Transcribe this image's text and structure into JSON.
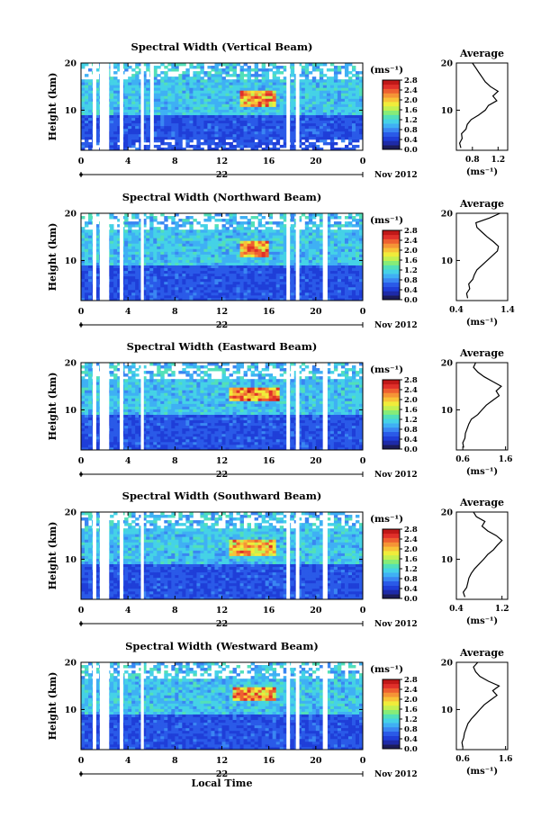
{
  "figure": {
    "date_label": "Nov 2012",
    "day_label": "22",
    "xlabel": "Local Time",
    "ylabel": "Height (km)",
    "cbar_unit": "(ms⁻¹)",
    "avg_title": "Average",
    "avg_xlabel": "(ms⁻¹)"
  },
  "colors": {
    "colormap": [
      "#1c1c5a",
      "#1e2aa8",
      "#1f3ed8",
      "#2a5ae8",
      "#3a86f2",
      "#3fb0f4",
      "#45d2e6",
      "#52e0b8",
      "#86ec78",
      "#c4f050",
      "#f0ec3a",
      "#f8c238",
      "#f59436",
      "#ee6030",
      "#e0302a",
      "#c01818"
    ]
  },
  "chart_data": [
    {
      "type": "heatmap",
      "title": "Spectral Width (Vertical Beam)",
      "x_ticks": [
        "0",
        "4",
        "8",
        "12",
        "16",
        "20",
        "0"
      ],
      "xlim": [
        0,
        24
      ],
      "y_ticks": [
        "20",
        "10"
      ],
      "ylim": [
        1.5,
        20
      ],
      "colorbar": {
        "ticks": [
          "2.8",
          "2.4",
          "2.0",
          "1.6",
          "1.2",
          "0.8",
          "0.4",
          "0.0"
        ],
        "range": [
          0.0,
          2.8
        ]
      },
      "data_gaps_hours": [
        [
          1.0,
          1.3
        ],
        [
          1.6,
          2.4
        ],
        [
          3.3,
          3.6
        ],
        [
          5.1,
          5.35
        ],
        [
          5.9,
          6.2
        ],
        [
          17.5,
          17.8
        ],
        [
          18.3,
          18.6
        ]
      ],
      "high_width_region": {
        "time_hours": [
          13.5,
          16.5
        ],
        "height_km": [
          11,
          14
        ],
        "value": 2.6
      },
      "average_profile": {
        "x_ticks": [
          "0.8",
          "1.2"
        ],
        "xlim": [
          0.55,
          1.35
        ],
        "y_ticks": [
          "20",
          "10"
        ],
        "ylim": [
          1.5,
          20
        ],
        "height_km": [
          2,
          3,
          4,
          5,
          6,
          7,
          8,
          9,
          10,
          11,
          12,
          13,
          14,
          15,
          16,
          17,
          18,
          19,
          20
        ],
        "width_ms": [
          0.62,
          0.6,
          0.64,
          0.63,
          0.7,
          0.72,
          0.78,
          0.9,
          1.0,
          1.05,
          1.18,
          1.12,
          1.2,
          1.08,
          1.0,
          0.95,
          0.9,
          0.85,
          0.8
        ]
      }
    },
    {
      "type": "heatmap",
      "title": "Spectral Width (Northward Beam)",
      "x_ticks": [
        "0",
        "4",
        "8",
        "12",
        "16",
        "20",
        "0"
      ],
      "xlim": [
        0,
        24
      ],
      "y_ticks": [
        "20",
        "10"
      ],
      "ylim": [
        1.5,
        20
      ],
      "colorbar": {
        "ticks": [
          "2.8",
          "2.4",
          "2.0",
          "1.6",
          "1.2",
          "0.8",
          "0.4",
          "0.0"
        ],
        "range": [
          0.0,
          2.8
        ]
      },
      "data_gaps_hours": [
        [
          1.0,
          1.3
        ],
        [
          1.6,
          2.4
        ],
        [
          3.3,
          3.6
        ],
        [
          5.1,
          5.35
        ],
        [
          17.5,
          17.8
        ],
        [
          18.3,
          18.6
        ],
        [
          20.6,
          21.0
        ]
      ],
      "high_width_region": {
        "time_hours": [
          13.5,
          16.0
        ],
        "height_km": [
          11,
          14
        ],
        "value": 2.6
      },
      "average_profile": {
        "x_ticks": [
          "0.4",
          "1.4"
        ],
        "xlim": [
          0.4,
          1.4
        ],
        "y_ticks": [
          "20",
          "10"
        ],
        "ylim": [
          1.5,
          20
        ],
        "height_km": [
          2,
          3,
          4,
          5,
          6,
          7,
          8,
          9,
          10,
          11,
          12,
          13,
          14,
          15,
          16,
          17,
          18,
          19,
          20
        ],
        "width_ms": [
          0.62,
          0.6,
          0.66,
          0.64,
          0.72,
          0.75,
          0.8,
          0.9,
          1.0,
          1.1,
          1.2,
          1.22,
          1.12,
          1.0,
          0.9,
          0.8,
          0.78,
          1.05,
          1.25
        ]
      }
    },
    {
      "type": "heatmap",
      "title": "Spectral Width (Eastward Beam)",
      "x_ticks": [
        "0",
        "4",
        "8",
        "12",
        "16",
        "20",
        "0"
      ],
      "xlim": [
        0,
        24
      ],
      "y_ticks": [
        "20",
        "10"
      ],
      "ylim": [
        1.5,
        20
      ],
      "colorbar": {
        "ticks": [
          "2.8",
          "2.4",
          "2.0",
          "1.6",
          "1.2",
          "0.8",
          "0.4",
          "0.0"
        ],
        "range": [
          0.0,
          2.8
        ]
      },
      "data_gaps_hours": [
        [
          1.0,
          1.3
        ],
        [
          1.6,
          2.4
        ],
        [
          3.3,
          3.6
        ],
        [
          5.1,
          5.35
        ],
        [
          17.5,
          17.8
        ],
        [
          18.3,
          18.6
        ],
        [
          20.6,
          21.0
        ]
      ],
      "high_width_region": {
        "time_hours": [
          12.5,
          17.0
        ],
        "height_km": [
          12,
          15
        ],
        "value": 2.7
      },
      "average_profile": {
        "x_ticks": [
          "0.6",
          "1.6"
        ],
        "xlim": [
          0.45,
          1.65
        ],
        "y_ticks": [
          "20",
          "10"
        ],
        "ylim": [
          1.5,
          20
        ],
        "height_km": [
          2,
          3,
          4,
          5,
          6,
          7,
          8,
          9,
          10,
          11,
          12,
          13,
          14,
          15,
          16,
          17,
          18,
          19,
          20
        ],
        "width_ms": [
          0.62,
          0.6,
          0.65,
          0.66,
          0.7,
          0.74,
          0.8,
          0.95,
          1.05,
          1.15,
          1.3,
          1.45,
          1.38,
          1.5,
          1.3,
          1.1,
          0.95,
          0.85,
          0.9
        ]
      }
    },
    {
      "type": "heatmap",
      "title": "Spectral Width (Southward Beam)",
      "x_ticks": [
        "0",
        "4",
        "8",
        "12",
        "16",
        "20",
        "0"
      ],
      "xlim": [
        0,
        24
      ],
      "y_ticks": [
        "20",
        "10"
      ],
      "ylim": [
        1.5,
        20
      ],
      "colorbar": {
        "ticks": [
          "2.8",
          "2.4",
          "2.0",
          "1.6",
          "1.2",
          "0.8",
          "0.4",
          "0.0"
        ],
        "range": [
          0.0,
          2.8
        ]
      },
      "data_gaps_hours": [
        [
          1.0,
          1.3
        ],
        [
          1.6,
          2.4
        ],
        [
          3.3,
          3.6
        ],
        [
          5.1,
          5.35
        ],
        [
          17.5,
          17.8
        ],
        [
          18.3,
          18.6
        ],
        [
          20.6,
          21.0
        ]
      ],
      "high_width_region": {
        "time_hours": [
          12.5,
          16.5
        ],
        "height_km": [
          11,
          14
        ],
        "value": 2.5
      },
      "average_profile": {
        "x_ticks": [
          "0.4",
          "1.2"
        ],
        "xlim": [
          0.4,
          1.3
        ],
        "y_ticks": [
          "20",
          "10"
        ],
        "ylim": [
          1.5,
          20
        ],
        "height_km": [
          2,
          3,
          4,
          5,
          6,
          7,
          8,
          9,
          10,
          11,
          12,
          13,
          14,
          15,
          16,
          17,
          18,
          19,
          20
        ],
        "width_ms": [
          0.55,
          0.52,
          0.58,
          0.6,
          0.62,
          0.66,
          0.72,
          0.8,
          0.88,
          0.95,
          1.05,
          1.12,
          1.2,
          1.1,
          0.95,
          0.85,
          0.9,
          0.75,
          0.7
        ]
      }
    },
    {
      "type": "heatmap",
      "title": "Spectral Width (Westward Beam)",
      "x_ticks": [
        "0",
        "4",
        "8",
        "12",
        "16",
        "20",
        "0"
      ],
      "xlim": [
        0,
        24
      ],
      "y_ticks": [
        "20",
        "10"
      ],
      "ylim": [
        1.5,
        20
      ],
      "colorbar": {
        "ticks": [
          "2.8",
          "2.4",
          "2.0",
          "1.6",
          "1.2",
          "0.8",
          "0.4",
          "0.0"
        ],
        "range": [
          0.0,
          2.8
        ]
      },
      "data_gaps_hours": [
        [
          1.0,
          1.3
        ],
        [
          1.6,
          2.4
        ],
        [
          3.3,
          3.6
        ],
        [
          5.1,
          5.35
        ],
        [
          17.5,
          17.8
        ],
        [
          18.3,
          18.6
        ],
        [
          20.6,
          21.0
        ]
      ],
      "high_width_region": {
        "time_hours": [
          13.0,
          16.5
        ],
        "height_km": [
          12,
          15
        ],
        "value": 2.6
      },
      "average_profile": {
        "x_ticks": [
          "0.6",
          "1.6"
        ],
        "xlim": [
          0.45,
          1.65
        ],
        "y_ticks": [
          "20",
          "10"
        ],
        "ylim": [
          1.5,
          20
        ],
        "height_km": [
          2,
          3,
          4,
          5,
          6,
          7,
          8,
          9,
          10,
          11,
          12,
          13,
          14,
          15,
          16,
          17,
          18,
          19,
          20
        ],
        "width_ms": [
          0.6,
          0.58,
          0.62,
          0.64,
          0.68,
          0.72,
          0.8,
          0.9,
          1.0,
          1.1,
          1.25,
          1.4,
          1.3,
          1.45,
          1.2,
          1.0,
          0.9,
          0.85,
          0.95
        ]
      }
    }
  ]
}
